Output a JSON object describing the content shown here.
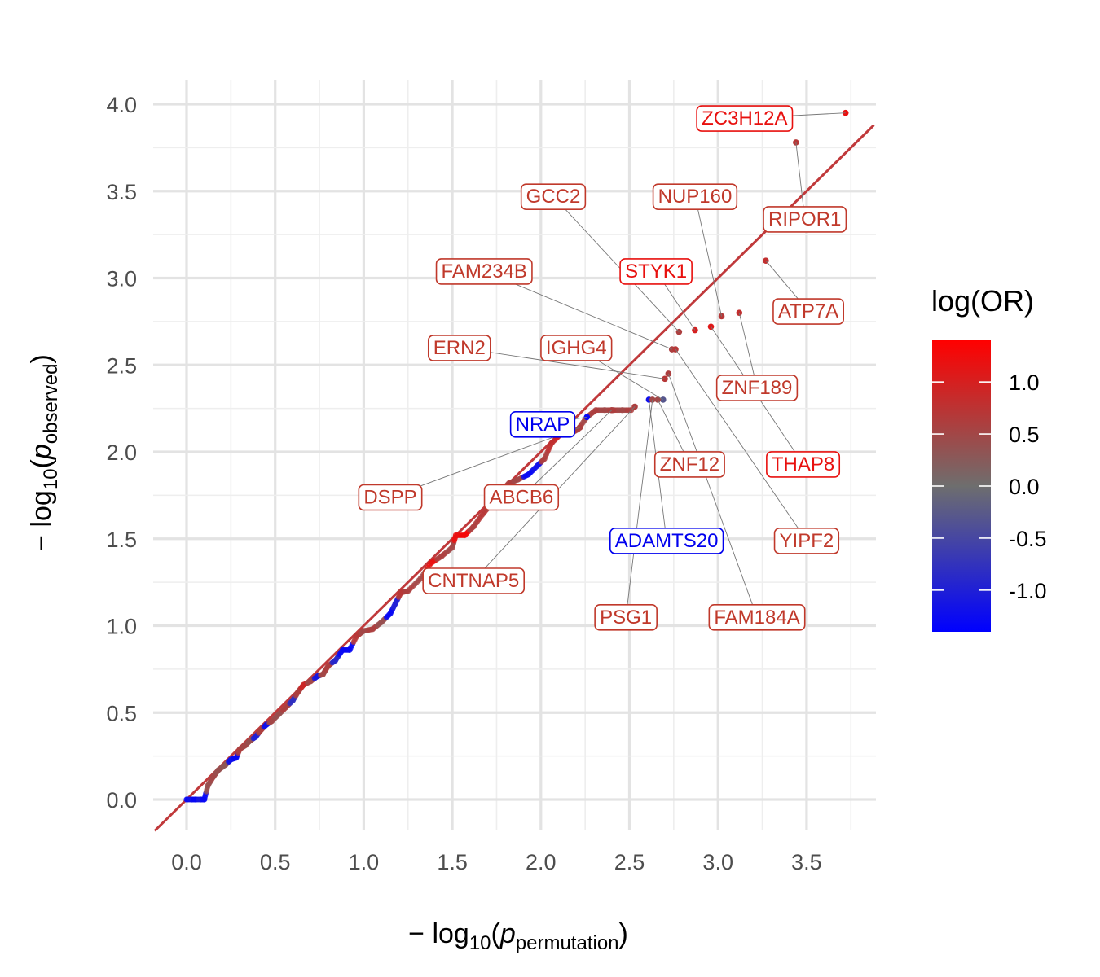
{
  "chart_data": {
    "type": "scatter",
    "x_axis": {
      "range": [
        -0.18,
        3.88
      ],
      "ticks": [
        0.0,
        0.5,
        1.0,
        1.5,
        2.0,
        2.5,
        3.0,
        3.5
      ],
      "tick_labels": [
        "0.0",
        "0.5",
        "1.0",
        "1.5",
        "2.0",
        "2.5",
        "3.0",
        "3.5"
      ],
      "title_prefix": "− log",
      "title_sub": "10",
      "title_var": "p",
      "title_var_sub": "permutation"
    },
    "y_axis": {
      "range": [
        -0.18,
        4.1
      ],
      "ticks": [
        0.0,
        0.5,
        1.0,
        1.5,
        2.0,
        2.5,
        3.0,
        3.5,
        4.0
      ],
      "tick_labels": [
        "0.0",
        "0.5",
        "1.0",
        "1.5",
        "2.0",
        "2.5",
        "3.0",
        "3.5",
        "4.0"
      ],
      "title_prefix": "− log",
      "title_sub": "10",
      "title_var": "p",
      "title_var_sub": "observed"
    },
    "grid": true,
    "reference_line": {
      "x1": -0.18,
      "y1": -0.18,
      "x2": 3.88,
      "y2": 3.88,
      "color": "#c0393b"
    },
    "legend": {
      "title": "log(OR)",
      "position": "right",
      "range": [
        -1.4,
        1.4
      ],
      "ticks": [
        1.0,
        0.5,
        0.0,
        -0.5,
        -1.0
      ],
      "tick_labels": [
        "1.0",
        "0.5",
        "0.0",
        "-0.5",
        "-1.0"
      ],
      "colors": {
        "low": "#0000ff",
        "mid": "#6e6e6e",
        "high": "#ff0000"
      }
    },
    "dense_points": [
      {
        "x": 0.0,
        "y": 0.0,
        "c": -1.3
      },
      {
        "x": 0.03,
        "y": 0.0,
        "c": -1.2
      },
      {
        "x": 0.05,
        "y": 0.0,
        "c": -1.3
      },
      {
        "x": 0.08,
        "y": 0.0,
        "c": -1.1
      },
      {
        "x": 0.1,
        "y": 0.0,
        "c": -1.3
      },
      {
        "x": 0.12,
        "y": 0.08,
        "c": 0.4
      },
      {
        "x": 0.15,
        "y": 0.13,
        "c": 0.5
      },
      {
        "x": 0.18,
        "y": 0.17,
        "c": 0.4
      },
      {
        "x": 0.22,
        "y": 0.2,
        "c": 0.3
      },
      {
        "x": 0.25,
        "y": 0.23,
        "c": -1.2
      },
      {
        "x": 0.28,
        "y": 0.24,
        "c": -1.3
      },
      {
        "x": 0.3,
        "y": 0.29,
        "c": 0.6
      },
      {
        "x": 0.33,
        "y": 0.31,
        "c": 0.5
      },
      {
        "x": 0.36,
        "y": 0.34,
        "c": 0.4
      },
      {
        "x": 0.39,
        "y": 0.36,
        "c": -1.0
      },
      {
        "x": 0.42,
        "y": 0.4,
        "c": 0.6
      },
      {
        "x": 0.45,
        "y": 0.43,
        "c": -1.2
      },
      {
        "x": 0.48,
        "y": 0.45,
        "c": 0.5
      },
      {
        "x": 0.52,
        "y": 0.49,
        "c": 0.4
      },
      {
        "x": 0.56,
        "y": 0.53,
        "c": 0.6
      },
      {
        "x": 0.6,
        "y": 0.57,
        "c": -0.8
      },
      {
        "x": 0.63,
        "y": 0.62,
        "c": 0.6
      },
      {
        "x": 0.66,
        "y": 0.66,
        "c": 0.9
      },
      {
        "x": 0.7,
        "y": 0.68,
        "c": 0.5
      },
      {
        "x": 0.74,
        "y": 0.71,
        "c": -1.1
      },
      {
        "x": 0.77,
        "y": 0.72,
        "c": 0.5
      },
      {
        "x": 0.8,
        "y": 0.77,
        "c": 0.6
      },
      {
        "x": 0.84,
        "y": 0.8,
        "c": -0.9
      },
      {
        "x": 0.88,
        "y": 0.86,
        "c": -1.3
      },
      {
        "x": 0.92,
        "y": 0.86,
        "c": -1.3
      },
      {
        "x": 0.96,
        "y": 0.94,
        "c": 0.7
      },
      {
        "x": 1.0,
        "y": 0.97,
        "c": 0.5
      },
      {
        "x": 1.05,
        "y": 0.98,
        "c": 0.6
      },
      {
        "x": 1.1,
        "y": 1.02,
        "c": 0.4
      },
      {
        "x": 1.15,
        "y": 1.07,
        "c": -1.3
      },
      {
        "x": 1.18,
        "y": 1.13,
        "c": -1.0
      },
      {
        "x": 1.21,
        "y": 1.19,
        "c": 0.7
      },
      {
        "x": 1.25,
        "y": 1.2,
        "c": 0.6
      },
      {
        "x": 1.32,
        "y": 1.27,
        "c": 0.5
      },
      {
        "x": 1.38,
        "y": 1.36,
        "c": 1.2
      },
      {
        "x": 1.44,
        "y": 1.4,
        "c": 0.6
      },
      {
        "x": 1.5,
        "y": 1.45,
        "c": 0.5
      },
      {
        "x": 1.52,
        "y": 1.52,
        "c": 1.2
      },
      {
        "x": 1.57,
        "y": 1.52,
        "c": 1.3
      },
      {
        "x": 1.62,
        "y": 1.57,
        "c": 0.6
      },
      {
        "x": 1.67,
        "y": 1.64,
        "c": 0.7
      },
      {
        "x": 1.72,
        "y": 1.7,
        "c": 0.5
      },
      {
        "x": 1.77,
        "y": 1.77,
        "c": -1.0
      },
      {
        "x": 1.82,
        "y": 1.82,
        "c": 0.6
      },
      {
        "x": 1.87,
        "y": 1.84,
        "c": 0.5
      },
      {
        "x": 1.93,
        "y": 1.87,
        "c": -1.3
      },
      {
        "x": 1.98,
        "y": 1.92,
        "c": -1.2
      },
      {
        "x": 2.02,
        "y": 1.96,
        "c": 0.6
      },
      {
        "x": 2.06,
        "y": 2.05,
        "c": 0.8
      },
      {
        "x": 2.11,
        "y": 2.1,
        "c": 1.0
      },
      {
        "x": 2.16,
        "y": 2.1,
        "c": 0.9
      },
      {
        "x": 2.21,
        "y": 2.13,
        "c": 0.6
      },
      {
        "x": 2.26,
        "y": 2.2,
        "c": 0.5
      },
      {
        "x": 2.31,
        "y": 2.24,
        "c": 0.6
      },
      {
        "x": 2.36,
        "y": 2.24,
        "c": 0.5
      },
      {
        "x": 2.41,
        "y": 2.24,
        "c": 0.6
      },
      {
        "x": 2.46,
        "y": 2.24,
        "c": 0.5
      },
      {
        "x": 2.51,
        "y": 2.24,
        "c": 0.6
      }
    ],
    "labeled_points": [
      {
        "name": "ZC3H12A",
        "x": 3.72,
        "y": 3.95,
        "c": 1.2,
        "lx": 3.15,
        "ly": 3.92,
        "color": "#e8100e"
      },
      {
        "name": "RIPOR1",
        "x": 3.44,
        "y": 3.78,
        "c": 0.7,
        "lx": 3.49,
        "ly": 3.34,
        "color": "#c0392b"
      },
      {
        "name": "NUP160",
        "x": 3.02,
        "y": 2.78,
        "c": 0.7,
        "lx": 2.87,
        "ly": 3.47,
        "color": "#c0392b"
      },
      {
        "name": "GCC2",
        "x": 2.78,
        "y": 2.69,
        "c": 0.6,
        "lx": 2.07,
        "ly": 3.47,
        "color": "#c0392b"
      },
      {
        "name": "ATP7A",
        "x": 3.27,
        "y": 3.1,
        "c": 0.8,
        "lx": 3.51,
        "ly": 2.81,
        "color": "#c0392b"
      },
      {
        "name": "STYK1",
        "x": 2.87,
        "y": 2.7,
        "c": 1.0,
        "lx": 2.65,
        "ly": 3.04,
        "color": "#e8100e"
      },
      {
        "name": "FAM234B",
        "x": 2.74,
        "y": 2.59,
        "c": 0.6,
        "lx": 1.68,
        "ly": 3.04,
        "color": "#c0392b"
      },
      {
        "name": "ERN2",
        "x": 2.7,
        "y": 2.42,
        "c": 0.7,
        "lx": 1.54,
        "ly": 2.6,
        "color": "#c0392b"
      },
      {
        "name": "IGHG4",
        "x": 2.69,
        "y": 2.3,
        "c": -0.3,
        "lx": 2.2,
        "ly": 2.6,
        "color": "#c0392b"
      },
      {
        "name": "ZNF189",
        "x": 3.12,
        "y": 2.8,
        "c": 0.8,
        "lx": 3.22,
        "ly": 2.37,
        "color": "#c0392b"
      },
      {
        "name": "NRAP",
        "x": 2.26,
        "y": 2.2,
        "c": -1.3,
        "lx": 2.01,
        "ly": 2.16,
        "color": "#0000ee"
      },
      {
        "name": "THAP8",
        "x": 2.96,
        "y": 2.72,
        "c": 1.1,
        "lx": 3.48,
        "ly": 1.93,
        "color": "#e8100e"
      },
      {
        "name": "ZNF12",
        "x": 2.66,
        "y": 2.3,
        "c": 0.5,
        "lx": 2.84,
        "ly": 1.93,
        "color": "#c0392b"
      },
      {
        "name": "DSPP",
        "x": 2.22,
        "y": 2.14,
        "c": 0.6,
        "lx": 1.15,
        "ly": 1.74,
        "color": "#c0392b"
      },
      {
        "name": "ABCB6",
        "x": 2.4,
        "y": 2.24,
        "c": 0.6,
        "lx": 1.89,
        "ly": 1.74,
        "color": "#c0392b"
      },
      {
        "name": "ADAMTS20",
        "x": 2.61,
        "y": 2.3,
        "c": -1.2,
        "lx": 2.71,
        "ly": 1.49,
        "color": "#0000ee"
      },
      {
        "name": "YIPF2",
        "x": 2.76,
        "y": 2.59,
        "c": 0.7,
        "lx": 3.5,
        "ly": 1.49,
        "color": "#c0392b"
      },
      {
        "name": "CNTNAP5",
        "x": 2.53,
        "y": 2.26,
        "c": 0.6,
        "lx": 1.62,
        "ly": 1.26,
        "color": "#c0392b"
      },
      {
        "name": "PSG1",
        "x": 2.63,
        "y": 2.3,
        "c": 0.5,
        "lx": 2.48,
        "ly": 1.05,
        "color": "#c0392b"
      },
      {
        "name": "FAM184A",
        "x": 2.72,
        "y": 2.45,
        "c": 0.6,
        "lx": 3.22,
        "ly": 1.05,
        "color": "#c0392b"
      }
    ]
  }
}
